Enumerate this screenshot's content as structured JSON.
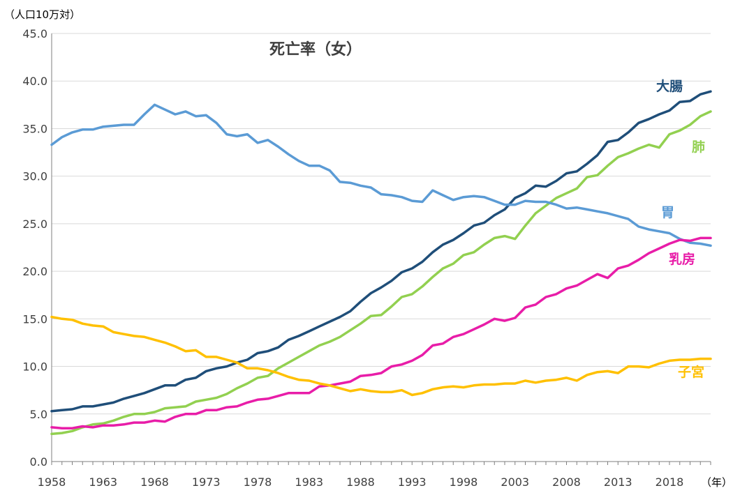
{
  "chart_data": {
    "type": "line",
    "title": "死亡率（女）",
    "ylabel": "（人口10万対）",
    "xlabel": "（年）",
    "ylim": [
      0,
      45
    ],
    "xlim": [
      1958,
      2022
    ],
    "y_ticks": [
      "0.0",
      "5.0",
      "10.0",
      "15.0",
      "20.0",
      "25.0",
      "30.0",
      "35.0",
      "40.0",
      "45.0"
    ],
    "x_ticks": [
      "1958",
      "1963",
      "1968",
      "1973",
      "1978",
      "1983",
      "1988",
      "1993",
      "1998",
      "2003",
      "2008",
      "2013",
      "2018"
    ],
    "grid": true,
    "legend": "inline labels at line ends",
    "x": [
      1958,
      1959,
      1960,
      1961,
      1962,
      1963,
      1964,
      1965,
      1966,
      1967,
      1968,
      1969,
      1970,
      1971,
      1972,
      1973,
      1974,
      1975,
      1976,
      1977,
      1978,
      1979,
      1980,
      1981,
      1982,
      1983,
      1984,
      1985,
      1986,
      1987,
      1988,
      1989,
      1990,
      1991,
      1992,
      1993,
      1994,
      1995,
      1996,
      1997,
      1998,
      1999,
      2000,
      2001,
      2002,
      2003,
      2004,
      2005,
      2006,
      2007,
      2008,
      2009,
      2010,
      2011,
      2012,
      2013,
      2014,
      2015,
      2016,
      2017,
      2018,
      2019,
      2020,
      2021,
      2022
    ],
    "series": [
      {
        "name": "大腸",
        "color": "#1f4e79",
        "values": [
          5.3,
          5.4,
          5.5,
          5.8,
          5.8,
          6.0,
          6.2,
          6.6,
          6.9,
          7.2,
          7.6,
          8.0,
          8.0,
          8.6,
          8.8,
          9.5,
          9.8,
          10.0,
          10.4,
          10.7,
          11.4,
          11.6,
          12.0,
          12.8,
          13.2,
          13.7,
          14.2,
          14.7,
          15.2,
          15.8,
          16.8,
          17.7,
          18.3,
          19.0,
          19.9,
          20.3,
          21.0,
          22.0,
          22.8,
          23.3,
          24.0,
          24.8,
          25.1,
          25.9,
          26.5,
          27.7,
          28.2,
          29.0,
          28.9,
          29.5,
          30.3,
          30.5,
          31.3,
          32.2,
          33.6,
          33.8,
          34.6,
          35.6,
          36.0,
          36.5,
          36.9,
          37.8,
          37.9,
          38.6,
          38.9
        ]
      },
      {
        "name": "肺",
        "color": "#92d050",
        "values": [
          2.9,
          3.0,
          3.2,
          3.6,
          3.9,
          4.0,
          4.3,
          4.7,
          5.0,
          5.0,
          5.2,
          5.6,
          5.7,
          5.8,
          6.3,
          6.5,
          6.7,
          7.1,
          7.7,
          8.2,
          8.8,
          9.0,
          9.8,
          10.4,
          11.0,
          11.6,
          12.2,
          12.6,
          13.1,
          13.8,
          14.5,
          15.3,
          15.4,
          16.3,
          17.3,
          17.6,
          18.4,
          19.4,
          20.3,
          20.8,
          21.7,
          22.0,
          22.8,
          23.5,
          23.7,
          23.4,
          24.8,
          26.1,
          26.9,
          27.7,
          28.2,
          28.7,
          29.9,
          30.1,
          31.1,
          32.0,
          32.4,
          32.9,
          33.3,
          33.0,
          34.4,
          34.8,
          35.4,
          36.3,
          36.8
        ]
      },
      {
        "name": "胃",
        "color": "#5b9bd5",
        "values": [
          33.3,
          34.1,
          34.6,
          34.9,
          34.9,
          35.2,
          35.3,
          35.4,
          35.4,
          36.5,
          37.5,
          37.0,
          36.5,
          36.8,
          36.3,
          36.4,
          35.6,
          34.4,
          34.2,
          34.4,
          33.5,
          33.8,
          33.1,
          32.3,
          31.6,
          31.1,
          31.1,
          30.6,
          29.4,
          29.3,
          29.0,
          28.8,
          28.1,
          28.0,
          27.8,
          27.4,
          27.3,
          28.5,
          28.0,
          27.5,
          27.8,
          27.9,
          27.8,
          27.4,
          27.0,
          27.0,
          27.4,
          27.3,
          27.3,
          27.0,
          26.6,
          26.7,
          26.5,
          26.3,
          26.1,
          25.8,
          25.5,
          24.7,
          24.4,
          24.2,
          24.0,
          23.4,
          23.0,
          22.9,
          22.7
        ]
      },
      {
        "name": "乳房",
        "color": "#e81da8",
        "values": [
          3.6,
          3.5,
          3.5,
          3.7,
          3.6,
          3.8,
          3.8,
          3.9,
          4.1,
          4.1,
          4.3,
          4.2,
          4.7,
          5.0,
          5.0,
          5.4,
          5.4,
          5.7,
          5.8,
          6.2,
          6.5,
          6.6,
          6.9,
          7.2,
          7.2,
          7.2,
          7.9,
          8.0,
          8.2,
          8.4,
          9.0,
          9.1,
          9.3,
          10.0,
          10.2,
          10.6,
          11.2,
          12.2,
          12.4,
          13.1,
          13.4,
          13.9,
          14.4,
          15.0,
          14.8,
          15.1,
          16.2,
          16.5,
          17.3,
          17.6,
          18.2,
          18.5,
          19.1,
          19.7,
          19.3,
          20.3,
          20.6,
          21.2,
          21.9,
          22.4,
          22.9,
          23.3,
          23.2,
          23.5,
          23.5
        ]
      },
      {
        "name": "子宮",
        "color": "#ffc000",
        "values": [
          15.2,
          15.0,
          14.9,
          14.5,
          14.3,
          14.2,
          13.6,
          13.4,
          13.2,
          13.1,
          12.8,
          12.5,
          12.1,
          11.6,
          11.7,
          11.0,
          11.0,
          10.7,
          10.4,
          9.8,
          9.8,
          9.6,
          9.3,
          8.9,
          8.6,
          8.5,
          8.2,
          8.0,
          7.7,
          7.4,
          7.6,
          7.4,
          7.3,
          7.3,
          7.5,
          7.0,
          7.2,
          7.6,
          7.8,
          7.9,
          7.8,
          8.0,
          8.1,
          8.1,
          8.2,
          8.2,
          8.5,
          8.3,
          8.5,
          8.6,
          8.8,
          8.5,
          9.1,
          9.4,
          9.5,
          9.3,
          10.0,
          10.0,
          9.9,
          10.3,
          10.6,
          10.7,
          10.7,
          10.8,
          10.8
        ]
      }
    ]
  }
}
